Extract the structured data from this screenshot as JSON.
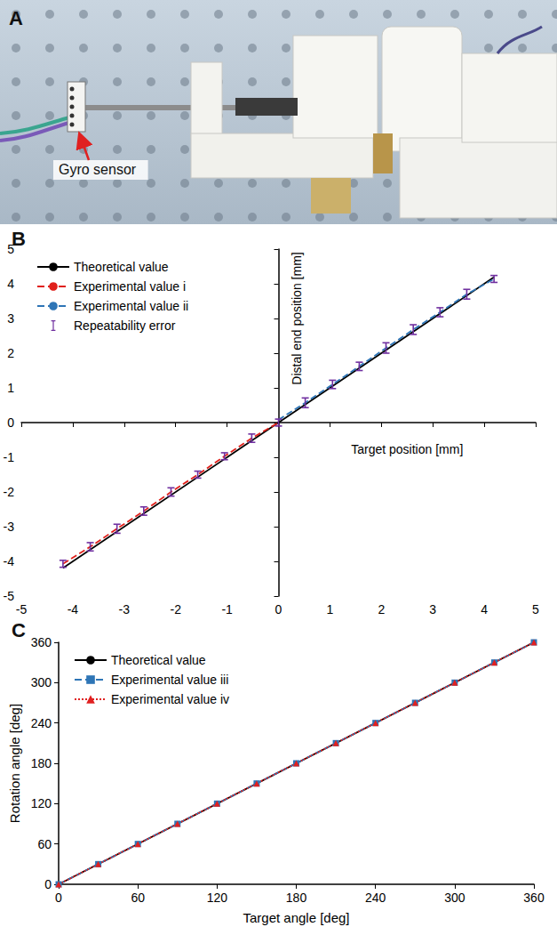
{
  "panel_a": {
    "letter": "A",
    "label": "Gyro sensor"
  },
  "chart_data": [
    {
      "type": "line",
      "title": "B",
      "x_label": "Target position [mm]",
      "y_label": "Distal end position [mm]",
      "xlim": [
        -5,
        5
      ],
      "xticks": [
        -5,
        -4,
        -3,
        -2,
        -1,
        0,
        1,
        2,
        3,
        4,
        5
      ],
      "ylim": [
        -5,
        5
      ],
      "yticks": [
        -5,
        -4,
        -3,
        -2,
        -1,
        0,
        1,
        2,
        3,
        4,
        5
      ],
      "grid": false,
      "legend": "upper left",
      "series": [
        {
          "name": "Theoretical value",
          "color": "#000000",
          "line_style": "solid",
          "marker": "none",
          "x": [
            -4.19,
            4.19
          ],
          "values": [
            -4.19,
            4.19
          ]
        },
        {
          "name": "Experimental value i",
          "color": "#e0201b",
          "line_style": "dashed",
          "marker": "none",
          "x": [
            -4.19,
            -3.66,
            -3.14,
            -2.62,
            -2.09,
            -1.57,
            -1.05,
            -0.52,
            0
          ],
          "values": [
            -4.07,
            -3.58,
            -3.06,
            -2.55,
            -2.0,
            -1.5,
            -0.97,
            -0.45,
            0
          ]
        },
        {
          "name": "Experimental value ii",
          "color": "#2e75b6",
          "line_style": "dashed",
          "marker": "none",
          "x": [
            0,
            0.52,
            1.05,
            1.57,
            2.09,
            2.62,
            3.14,
            3.66,
            4.19
          ],
          "values": [
            0.08,
            0.57,
            1.1,
            1.62,
            2.15,
            2.68,
            3.18,
            3.7,
            4.14
          ]
        },
        {
          "name": "Repeatability error",
          "type": "errorbar",
          "color": "#7030a0",
          "x": [
            -4.19,
            -3.66,
            -3.14,
            -2.62,
            -2.09,
            -1.57,
            -1.05,
            -0.52,
            0,
            0.52,
            1.05,
            1.57,
            2.09,
            2.62,
            3.14,
            3.66,
            4.19
          ],
          "values": [
            -4.07,
            -3.58,
            -3.06,
            -2.55,
            -2.0,
            -1.5,
            -0.97,
            -0.45,
            0,
            0.57,
            1.1,
            1.62,
            2.15,
            2.68,
            3.18,
            3.7,
            4.14
          ],
          "errors": [
            0.1,
            0.12,
            0.13,
            0.12,
            0.12,
            0.1,
            0.1,
            0.12,
            0.1,
            0.14,
            0.12,
            0.12,
            0.15,
            0.14,
            0.13,
            0.14,
            0.1
          ]
        }
      ]
    },
    {
      "type": "line",
      "title": "C",
      "x_label": "Target angle [deg]",
      "y_label": "Rotation angle [deg]",
      "xlim": [
        0,
        360
      ],
      "xticks": [
        0,
        60,
        120,
        180,
        240,
        300,
        360
      ],
      "ylim": [
        0,
        360
      ],
      "yticks": [
        0,
        60,
        120,
        180,
        240,
        300,
        360
      ],
      "grid": false,
      "legend": "upper left",
      "series": [
        {
          "name": "Theoretical value",
          "color": "#000000",
          "line_style": "solid",
          "marker": "none",
          "x": [
            0,
            360
          ],
          "values": [
            0,
            360
          ]
        },
        {
          "name": "Experimental value iii",
          "color": "#2e75b6",
          "line_style": "dashed",
          "marker": "square",
          "x": [
            0,
            30,
            60,
            90,
            120,
            150,
            180,
            210,
            240,
            270,
            300,
            330,
            360
          ],
          "values": [
            0,
            30,
            60,
            90,
            120,
            150,
            180,
            210,
            240,
            270,
            300,
            330,
            360
          ]
        },
        {
          "name": "Experimental value iv",
          "color": "#e02020",
          "line_style": "dotted",
          "marker": "triangle",
          "x": [
            0,
            30,
            60,
            90,
            120,
            150,
            180,
            210,
            240,
            270,
            300,
            330,
            360
          ],
          "values": [
            0,
            30,
            60,
            90,
            120,
            150,
            180,
            210,
            240,
            270,
            300,
            330,
            360
          ]
        }
      ]
    }
  ]
}
